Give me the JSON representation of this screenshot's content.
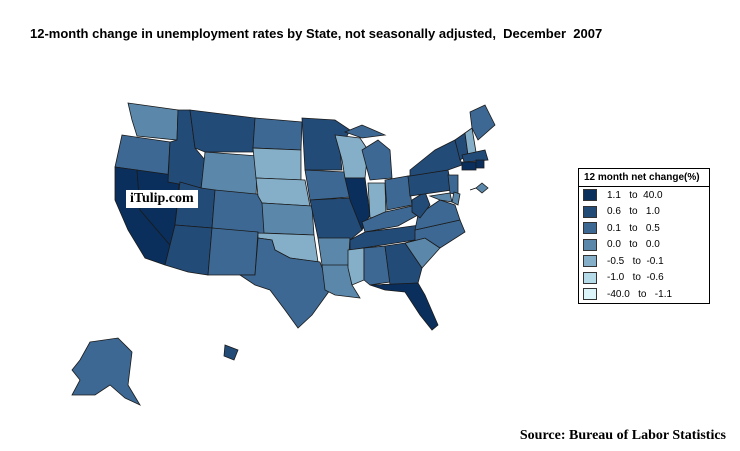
{
  "title": "12-month change in unemployment rates by State, not seasonally adjusted,  December  2007",
  "watermark": "iTulip.com",
  "source": "Source: Bureau of Labor Statistics",
  "legend": {
    "title": "12 month net change(%)",
    "classes": [
      {
        "range": "1.1   to  40.0",
        "color": "#0a2f5c"
      },
      {
        "range": "0.6   to   1.0",
        "color": "#234b78"
      },
      {
        "range": "0.1   to   0.5",
        "color": "#3d6893"
      },
      {
        "range": "0.0   to   0.0",
        "color": "#5b88aa"
      },
      {
        "range": "-0.5   to  -0.1",
        "color": "#85afc8"
      },
      {
        "range": "-1.0   to  -0.6",
        "color": "#b6dbe8"
      },
      {
        "range": "-40.0   to   -1.1",
        "color": "#dcf5fb"
      }
    ]
  }
}
